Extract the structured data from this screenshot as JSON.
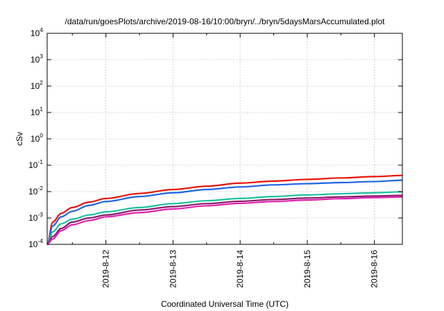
{
  "chart_data": {
    "type": "line",
    "title": "/data/run/goesPlots/archive/2019-08-16/10:00/bryn/../bryn/5daysMarsAccumulated.plot",
    "xlabel": "Coordinated Universal Time (UTC)",
    "ylabel": "cSv",
    "x_scale": "time",
    "y_scale": "log",
    "xlim": [
      "2019-08-11T03:00",
      "2019-08-16T10:00"
    ],
    "ylim": [
      0.0001,
      10000
    ],
    "grid": true,
    "x_ticks": [
      "2019-8-12",
      "2019-8-13",
      "2019-8-14",
      "2019-8-15",
      "2019-8-16"
    ],
    "y_ticks": [
      {
        "value": 0.0001,
        "base": "10",
        "exp": "-4"
      },
      {
        "value": 0.001,
        "base": "10",
        "exp": "-3"
      },
      {
        "value": 0.01,
        "base": "10",
        "exp": "-2"
      },
      {
        "value": 0.1,
        "base": "10",
        "exp": "-1"
      },
      {
        "value": 1,
        "base": "10",
        "exp": "0"
      },
      {
        "value": 10,
        "base": "10",
        "exp": "1"
      },
      {
        "value": 100,
        "base": "10",
        "exp": "2"
      },
      {
        "value": 1000,
        "base": "10",
        "exp": "3"
      },
      {
        "value": 10000,
        "base": "10",
        "exp": "4"
      }
    ],
    "x": [
      "2019-08-11T03:00",
      "2019-08-11T05:00",
      "2019-08-11T08:00",
      "2019-08-11T12:00",
      "2019-08-11T18:00",
      "2019-08-12T00:00",
      "2019-08-12T12:00",
      "2019-08-13T00:00",
      "2019-08-13T12:00",
      "2019-08-14T00:00",
      "2019-08-14T12:00",
      "2019-08-15T00:00",
      "2019-08-15T12:00",
      "2019-08-16T00:00",
      "2019-08-16T10:00"
    ],
    "series": [
      {
        "color": "#e8140c",
        "values": [
          0.0001,
          0.0007,
          0.0015,
          0.0025,
          0.004,
          0.0055,
          0.0085,
          0.012,
          0.016,
          0.021,
          0.025,
          0.029,
          0.033,
          0.037,
          0.041
        ]
      },
      {
        "color": "#1e64e6",
        "values": [
          0.0001,
          0.0005,
          0.0011,
          0.0018,
          0.003,
          0.0042,
          0.0065,
          0.009,
          0.012,
          0.015,
          0.018,
          0.02,
          0.022,
          0.024,
          0.027
        ]
      },
      {
        "color": "#1ec0a0",
        "values": [
          0.0001,
          0.0003,
          0.0006,
          0.0009,
          0.0013,
          0.0017,
          0.0025,
          0.0035,
          0.0045,
          0.0055,
          0.0065,
          0.0075,
          0.0083,
          0.009,
          0.0098
        ]
      },
      {
        "color": "#8a1a6a",
        "values": [
          0.0001,
          0.0002,
          0.0004,
          0.0007,
          0.001,
          0.0013,
          0.002,
          0.0027,
          0.0035,
          0.0043,
          0.005,
          0.0057,
          0.0063,
          0.0068,
          0.0072
        ]
      },
      {
        "color": "#e020b0",
        "values": [
          0.0001,
          0.00016,
          0.00033,
          0.00055,
          0.0008,
          0.0011,
          0.0016,
          0.0022,
          0.0029,
          0.0036,
          0.0042,
          0.0048,
          0.0054,
          0.0059,
          0.0063
        ]
      }
    ]
  }
}
